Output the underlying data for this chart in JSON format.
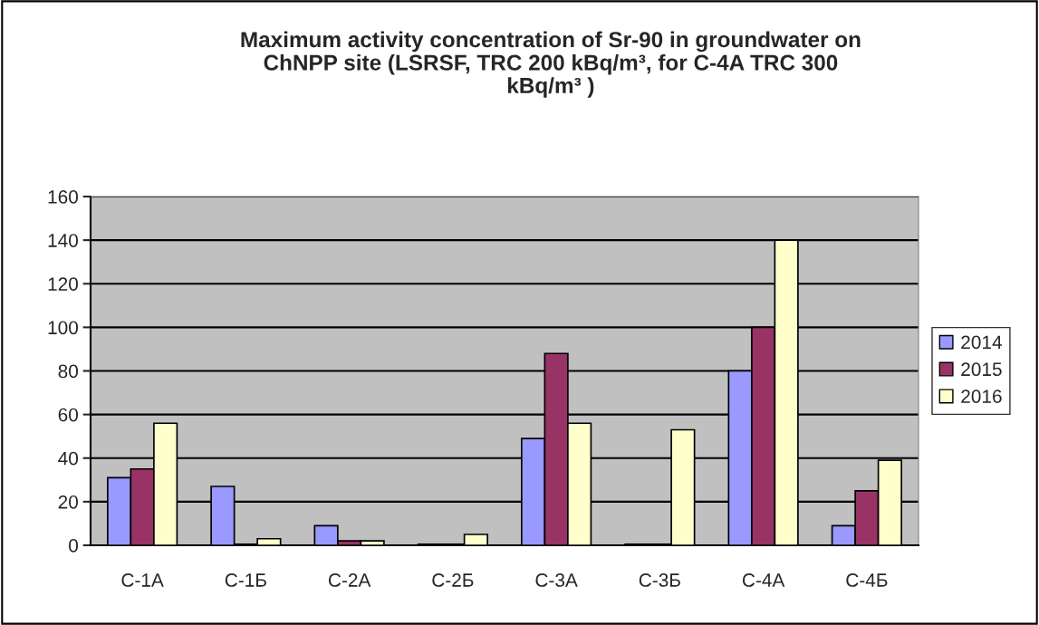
{
  "chart_data": {
    "type": "bar",
    "title": "Maximum activity concentration of Sr-90 in groundwater on\nChNPP site (LSRSF, TRC 200 kBq/m³, for C-4A TRC 300\nkBq/m³ )",
    "categories": [
      "С-1А",
      "С-1Б",
      "С-2А",
      "С-2Б",
      "С-3А",
      "С-3Б",
      "С-4А",
      "С-4Б"
    ],
    "series": [
      {
        "name": "2014",
        "color": "#9999ff",
        "values": [
          31,
          27,
          9,
          0.5,
          49,
          0.5,
          80,
          9
        ]
      },
      {
        "name": "2015",
        "color": "#993366",
        "values": [
          35,
          0.5,
          2,
          0.5,
          88,
          0.5,
          100,
          25
        ]
      },
      {
        "name": "2016",
        "color": "#ffffcc",
        "values": [
          56,
          3,
          2,
          5,
          56,
          53,
          140,
          39
        ]
      }
    ],
    "ylim": [
      0,
      160
    ],
    "yticks": [
      0,
      20,
      40,
      60,
      80,
      100,
      120,
      140,
      160
    ],
    "grid": "y",
    "legend": "right"
  }
}
